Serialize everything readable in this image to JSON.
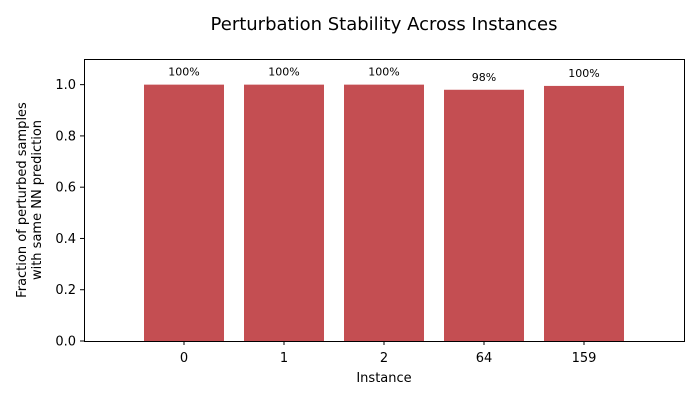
{
  "chart_data": {
    "type": "bar",
    "title": "Perturbation Stability Across Instances",
    "xlabel": "Instance",
    "ylabel": [
      "Fraction of perturbed samples",
      "with same NN prediction"
    ],
    "categories": [
      "0",
      "1",
      "2",
      "64",
      "159"
    ],
    "values": [
      1.0,
      1.0,
      1.0,
      0.98,
      0.995
    ],
    "data_labels": [
      "100%",
      "100%",
      "100%",
      "98%",
      "100%"
    ],
    "ylim": [
      0,
      1.1
    ],
    "yticks": [
      0.0,
      0.2,
      0.4,
      0.6,
      0.8,
      1.0
    ],
    "ytick_labels": [
      "0.0",
      "0.2",
      "0.4",
      "0.6",
      "0.8",
      "1.0"
    ],
    "bar_color": "#c44e52",
    "grid": false,
    "legend": "none"
  }
}
